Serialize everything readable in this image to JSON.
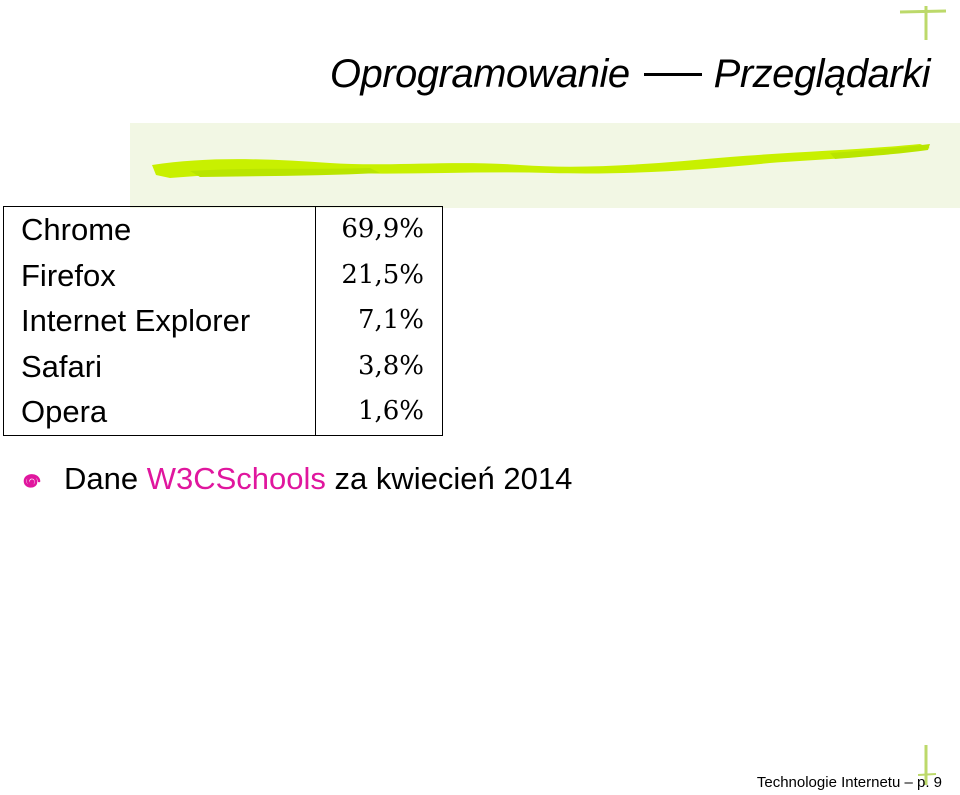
{
  "slide": {
    "title_left": "Oprogramowanie",
    "title_right": "Przeglądarki",
    "footer": "Technologie Internetu – p. 9"
  },
  "browsers": [
    {
      "name": "Chrome",
      "share": "69,9%"
    },
    {
      "name": "Firefox",
      "share": "21,5%"
    },
    {
      "name": "Internet Explorer",
      "share": "7,1%"
    },
    {
      "name": "Safari",
      "share": "3,8%"
    },
    {
      "name": "Opera",
      "share": "1,6%"
    }
  ],
  "note": {
    "prefix": "Dane",
    "link": "W3CSchools",
    "suffix": "za kwiecień 2014",
    "bullet_icon": "spiral-bullet-icon"
  },
  "colors": {
    "brush": "#c8f000",
    "link": "#e0169e",
    "bullet": "#e0169e"
  }
}
